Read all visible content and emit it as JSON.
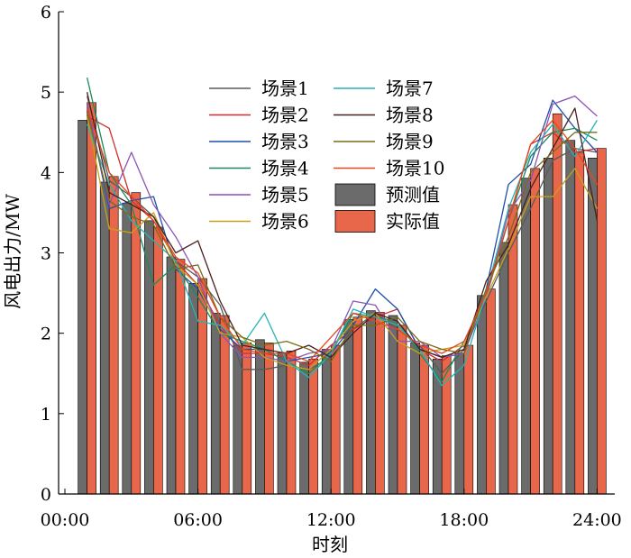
{
  "chart_data": {
    "type": "bar",
    "xlabel": "时刻",
    "ylabel": "风电出力/MW",
    "ylim": [
      0,
      6
    ],
    "yticks": [
      0,
      1,
      2,
      3,
      4,
      5,
      6
    ],
    "xlim": [
      0,
      24.5
    ],
    "xticks": [
      {
        "value": 0,
        "label": "00:00"
      },
      {
        "value": 6,
        "label": "06:00"
      },
      {
        "value": 12,
        "label": "12:00"
      },
      {
        "value": 18,
        "label": "18:00"
      },
      {
        "value": 24,
        "label": "24:00"
      }
    ],
    "hours": [
      1,
      2,
      3,
      4,
      5,
      6,
      7,
      8,
      9,
      10,
      11,
      12,
      13,
      14,
      15,
      16,
      17,
      18,
      19,
      20,
      21,
      22,
      23,
      24
    ],
    "legend_position": "top-center",
    "bar_series": [
      {
        "name": "预测值",
        "color": "#6b6b6b",
        "values": [
          4.65,
          3.88,
          3.62,
          3.4,
          2.95,
          2.62,
          2.25,
          1.85,
          1.92,
          1.76,
          1.64,
          1.8,
          2.17,
          2.28,
          2.22,
          1.88,
          1.68,
          1.75,
          2.47,
          3.13,
          3.93,
          4.18,
          4.4,
          4.18
        ]
      },
      {
        "name": "实际值",
        "color": "#e8674a",
        "values": [
          4.87,
          3.95,
          3.75,
          3.32,
          2.92,
          2.68,
          2.22,
          1.88,
          1.88,
          1.78,
          1.68,
          1.85,
          2.2,
          2.26,
          2.1,
          1.85,
          1.72,
          1.85,
          2.55,
          3.6,
          4.05,
          4.73,
          4.25,
          4.3
        ]
      }
    ],
    "line_series": [
      {
        "name": "场景1",
        "color": "#5a5a5a",
        "values": [
          4.95,
          3.9,
          3.7,
          3.45,
          2.9,
          2.7,
          2.35,
          1.55,
          1.55,
          1.6,
          1.55,
          1.7,
          2.05,
          2.25,
          2.05,
          1.85,
          1.5,
          1.8,
          2.4,
          3.0,
          3.55,
          4.15,
          4.3,
          4.25
        ]
      },
      {
        "name": "场景2",
        "color": "#d42c2c",
        "values": [
          4.7,
          4.55,
          3.65,
          3.4,
          2.9,
          2.6,
          2.1,
          1.75,
          1.75,
          1.7,
          1.6,
          1.85,
          2.05,
          2.2,
          2.3,
          1.8,
          1.65,
          1.85,
          2.5,
          3.4,
          4.35,
          4.5,
          4.25,
          4.3
        ]
      },
      {
        "name": "场景3",
        "color": "#1f4fa8",
        "values": [
          4.85,
          3.55,
          3.65,
          3.7,
          2.8,
          2.55,
          2.05,
          1.8,
          1.8,
          1.65,
          1.7,
          1.75,
          2.1,
          2.55,
          2.3,
          1.8,
          1.7,
          1.75,
          2.55,
          3.85,
          4.1,
          4.9,
          4.55,
          4.25
        ]
      },
      {
        "name": "场景4",
        "color": "#1a8a5a",
        "values": [
          5.18,
          4.0,
          3.6,
          2.6,
          2.85,
          2.45,
          2.0,
          1.9,
          1.8,
          1.65,
          1.5,
          1.75,
          2.25,
          2.2,
          2.15,
          1.75,
          1.4,
          1.9,
          2.45,
          3.4,
          4.2,
          4.5,
          4.55,
          4.4
        ]
      },
      {
        "name": "场景5",
        "color": "#8a55b5",
        "values": [
          4.85,
          3.6,
          4.25,
          3.6,
          3.2,
          2.7,
          2.0,
          1.7,
          1.7,
          1.65,
          1.75,
          1.8,
          2.4,
          2.35,
          1.9,
          1.9,
          1.7,
          1.75,
          2.45,
          3.5,
          3.9,
          4.85,
          4.95,
          4.7
        ]
      },
      {
        "name": "场景6",
        "color": "#c9a01a",
        "values": [
          4.7,
          3.3,
          3.25,
          3.5,
          2.85,
          2.6,
          2.0,
          1.95,
          1.7,
          1.6,
          1.55,
          1.8,
          2.15,
          2.25,
          1.9,
          1.75,
          1.8,
          1.85,
          2.45,
          3.05,
          3.7,
          3.7,
          4.05,
          3.55
        ]
      },
      {
        "name": "场景7",
        "color": "#27b3b3",
        "values": [
          4.6,
          3.85,
          3.4,
          3.15,
          2.9,
          2.15,
          2.1,
          1.85,
          2.25,
          1.65,
          1.45,
          1.75,
          2.3,
          2.2,
          2.1,
          1.8,
          1.35,
          1.6,
          2.5,
          3.55,
          4.25,
          4.6,
          4.2,
          4.65
        ]
      },
      {
        "name": "场景8",
        "color": "#4a2020",
        "values": [
          5.0,
          3.75,
          3.6,
          3.45,
          3.0,
          3.15,
          2.4,
          1.85,
          1.8,
          1.75,
          1.85,
          1.7,
          2.0,
          2.25,
          2.15,
          1.8,
          1.7,
          1.8,
          2.65,
          3.1,
          3.8,
          4.3,
          4.8,
          3.4
        ]
      },
      {
        "name": "场景9",
        "color": "#7a6a1a",
        "values": [
          4.75,
          3.65,
          3.45,
          3.35,
          2.8,
          2.85,
          2.2,
          1.95,
          1.85,
          1.9,
          1.8,
          1.65,
          2.1,
          2.1,
          2.2,
          1.9,
          1.8,
          1.75,
          2.55,
          3.2,
          4.0,
          4.25,
          4.5,
          4.5
        ]
      },
      {
        "name": "场景10",
        "color": "#e8451a",
        "values": [
          4.8,
          4.0,
          3.7,
          3.4,
          2.95,
          2.75,
          2.2,
          1.8,
          1.75,
          1.75,
          1.65,
          1.95,
          2.25,
          2.15,
          2.05,
          1.85,
          1.75,
          1.9,
          2.5,
          3.4,
          4.35,
          4.65,
          4.3,
          3.85
        ]
      }
    ]
  }
}
